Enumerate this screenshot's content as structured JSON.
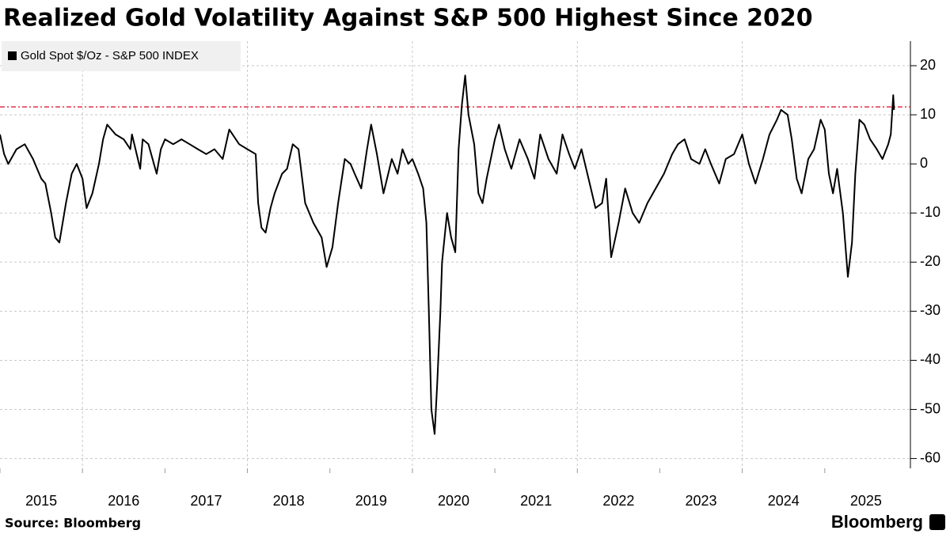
{
  "chart_data": {
    "type": "line",
    "title": "Realized Gold Volatility Against S&P 500 Highest Since 2020",
    "source": "Source: Bloomberg",
    "brand": "Bloomberg",
    "x": [
      2015.0,
      2015.05,
      2015.1,
      2015.2,
      2015.3,
      2015.4,
      2015.5,
      2015.55,
      2015.62,
      2015.67,
      2015.72,
      2015.8,
      2015.87,
      2015.93,
      2016.0,
      2016.05,
      2016.12,
      2016.2,
      2016.25,
      2016.3,
      2016.4,
      2016.5,
      2016.58,
      2016.6,
      2016.7,
      2016.73,
      2016.8,
      2016.9,
      2016.95,
      2017.0,
      2017.1,
      2017.2,
      2017.3,
      2017.4,
      2017.5,
      2017.6,
      2017.7,
      2017.78,
      2017.9,
      2018.0,
      2018.1,
      2018.13,
      2018.17,
      2018.22,
      2018.28,
      2018.33,
      2018.42,
      2018.48,
      2018.55,
      2018.62,
      2018.7,
      2018.8,
      2018.9,
      2018.96,
      2019.03,
      2019.1,
      2019.18,
      2019.25,
      2019.3,
      2019.38,
      2019.45,
      2019.5,
      2019.57,
      2019.65,
      2019.75,
      2019.82,
      2019.88,
      2019.95,
      2020.0,
      2020.07,
      2020.13,
      2020.17,
      2020.2,
      2020.23,
      2020.27,
      2020.3,
      2020.34,
      2020.36,
      2020.42,
      2020.47,
      2020.52,
      2020.56,
      2020.6,
      2020.64,
      2020.68,
      2020.75,
      2020.8,
      2020.85,
      2020.9,
      2021.0,
      2021.05,
      2021.12,
      2021.2,
      2021.3,
      2021.4,
      2021.48,
      2021.55,
      2021.65,
      2021.75,
      2021.82,
      2021.9,
      2021.97,
      2022.05,
      2022.15,
      2022.22,
      2022.3,
      2022.35,
      2022.41,
      2022.5,
      2022.58,
      2022.67,
      2022.75,
      2022.85,
      2022.95,
      2023.05,
      2023.15,
      2023.22,
      2023.3,
      2023.38,
      2023.48,
      2023.55,
      2023.62,
      2023.72,
      2023.8,
      2023.9,
      2024.0,
      2024.08,
      2024.16,
      2024.25,
      2024.33,
      2024.42,
      2024.47,
      2024.55,
      2024.6,
      2024.66,
      2024.72,
      2024.8,
      2024.87,
      2024.95,
      2025.0,
      2025.05,
      2025.1,
      2025.15,
      2025.22,
      2025.28,
      2025.33,
      2025.37,
      2025.42,
      2025.48,
      2025.55,
      2025.63,
      2025.7,
      2025.77,
      2025.8,
      2025.83,
      2025.84
    ],
    "series": [
      {
        "name": "Gold Spot $/Oz - S&P 500 INDEX",
        "color": "#000000",
        "values": [
          6,
          2,
          0,
          3,
          4,
          1,
          -3,
          -4,
          -10,
          -15,
          -16,
          -8,
          -2,
          0,
          -3,
          -9,
          -6,
          0,
          5,
          8,
          6,
          5,
          3,
          6,
          -1,
          5,
          4,
          -2,
          3,
          5,
          4,
          5,
          4,
          3,
          2,
          3,
          1,
          7,
          4,
          3,
          2,
          -8,
          -13,
          -14,
          -9,
          -6,
          -2,
          -1,
          4,
          3,
          -8,
          -12,
          -15,
          -21,
          -17,
          -8,
          1,
          0,
          -2,
          -5,
          3,
          8,
          2,
          -6,
          1,
          -2,
          3,
          0,
          1,
          -2,
          -5,
          -12,
          -30,
          -50,
          -55,
          -45,
          -30,
          -20,
          -10,
          -15,
          -18,
          3,
          12,
          18,
          10,
          4,
          -6,
          -8,
          -3,
          5,
          8,
          3,
          -1,
          5,
          1,
          -3,
          6,
          1,
          -2,
          6,
          2,
          -1,
          3,
          -4,
          -9,
          -8,
          -3,
          -19,
          -12,
          -5,
          -10,
          -12,
          -8,
          -5,
          -2,
          2,
          4,
          5,
          1,
          0,
          3,
          0,
          -4,
          1,
          2,
          6,
          0,
          -4,
          1,
          6,
          9,
          11,
          10,
          5,
          -3,
          -6,
          1,
          3,
          9,
          7,
          -2,
          -6,
          -1,
          -10,
          -23,
          -16,
          -2,
          9,
          8,
          5,
          3,
          1,
          4,
          6,
          14,
          11
        ]
      }
    ],
    "xlim": [
      2015,
      2026
    ],
    "xticks": [
      2015,
      2016,
      2017,
      2018,
      2019,
      2020,
      2021,
      2022,
      2023,
      2024,
      2025
    ],
    "ylim": [
      -62,
      25
    ],
    "yticks": [
      20,
      10,
      0,
      -10,
      -20,
      -30,
      -40,
      -50,
      -60
    ],
    "grid": true,
    "legend": "top-left",
    "reference_line": {
      "value": 11.6,
      "color": "#e0304a"
    }
  }
}
